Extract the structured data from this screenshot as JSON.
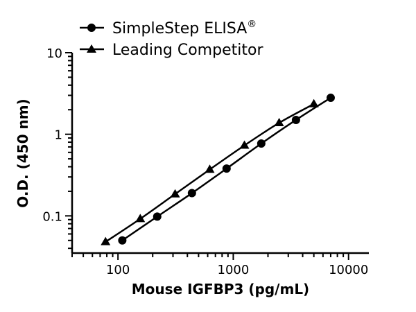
{
  "chart_data": {
    "type": "line",
    "xscale": "log",
    "yscale": "log",
    "xlabel": "Mouse IGFBP3 (pg/mL)",
    "ylabel": "O.D. (450 nm)",
    "xlim": [
      40,
      15000
    ],
    "ylim": [
      0.035,
      10
    ],
    "x_ticks": [
      {
        "value": 100,
        "label": "100"
      },
      {
        "value": 1000,
        "label": "1000"
      },
      {
        "value": 10000,
        "label": "10000"
      }
    ],
    "y_ticks": [
      {
        "value": 0.1,
        "label": "0.1"
      },
      {
        "value": 1,
        "label": "1"
      },
      {
        "value": 10,
        "label": "10"
      }
    ],
    "legend_position": "top-left, above plot",
    "series": [
      {
        "name": "SimpleStep ELISA",
        "name_superscript": "®",
        "marker": "circle",
        "x": [
          109,
          219,
          438,
          875,
          1750,
          3500,
          7000
        ],
        "y": [
          0.05,
          0.098,
          0.19,
          0.38,
          0.77,
          1.5,
          2.8
        ]
      },
      {
        "name": "Leading Competitor",
        "marker": "triangle",
        "x": [
          78,
          156,
          313,
          625,
          1250,
          2500,
          5000
        ],
        "y": [
          0.048,
          0.092,
          0.185,
          0.37,
          0.73,
          1.38,
          2.35
        ]
      }
    ]
  }
}
